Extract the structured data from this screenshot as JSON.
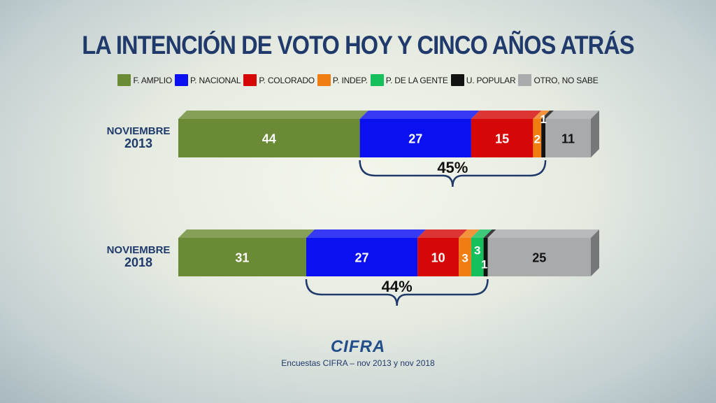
{
  "chart_data": {
    "type": "bar",
    "stacked": true,
    "orientation": "horizontal",
    "title": "LA INTENCIÓN DE VOTO HOY Y CINCO AÑOS ATRÁS",
    "legend_position": "top",
    "categories": [
      "NOVIEMBRE 2013",
      "NOVIEMBRE 2018"
    ],
    "category_lines": [
      [
        "NOVIEMBRE",
        "2013"
      ],
      [
        "NOVIEMBRE",
        "2018"
      ]
    ],
    "series": [
      {
        "name": "F. AMPLIO",
        "color": "#6b8a35",
        "values": [
          44,
          31
        ]
      },
      {
        "name": "P. NACIONAL",
        "color": "#0a10f0",
        "values": [
          27,
          27
        ]
      },
      {
        "name": "P. COLORADO",
        "color": "#d60707",
        "values": [
          15,
          10
        ]
      },
      {
        "name": "P. INDEP.",
        "color": "#ef7d12",
        "values": [
          2,
          3
        ]
      },
      {
        "name": "P. DE LA GENTE",
        "color": "#14bf5c",
        "values": [
          0,
          3
        ]
      },
      {
        "name": "U. POPULAR",
        "color": "#121212",
        "values": [
          1,
          1
        ]
      },
      {
        "name": "OTRO, NO SABE",
        "color": "#a9aaac",
        "values": [
          11,
          25
        ]
      }
    ],
    "brackets": [
      {
        "row": 0,
        "label": "45%",
        "from_series": 1,
        "to_series": 5
      },
      {
        "row": 1,
        "label": "44%",
        "from_series": 1,
        "to_series": 5
      }
    ]
  },
  "footer": {
    "logo": "CIFRA",
    "source": "Encuestas CIFRA – nov 2013 y nov 2018"
  }
}
